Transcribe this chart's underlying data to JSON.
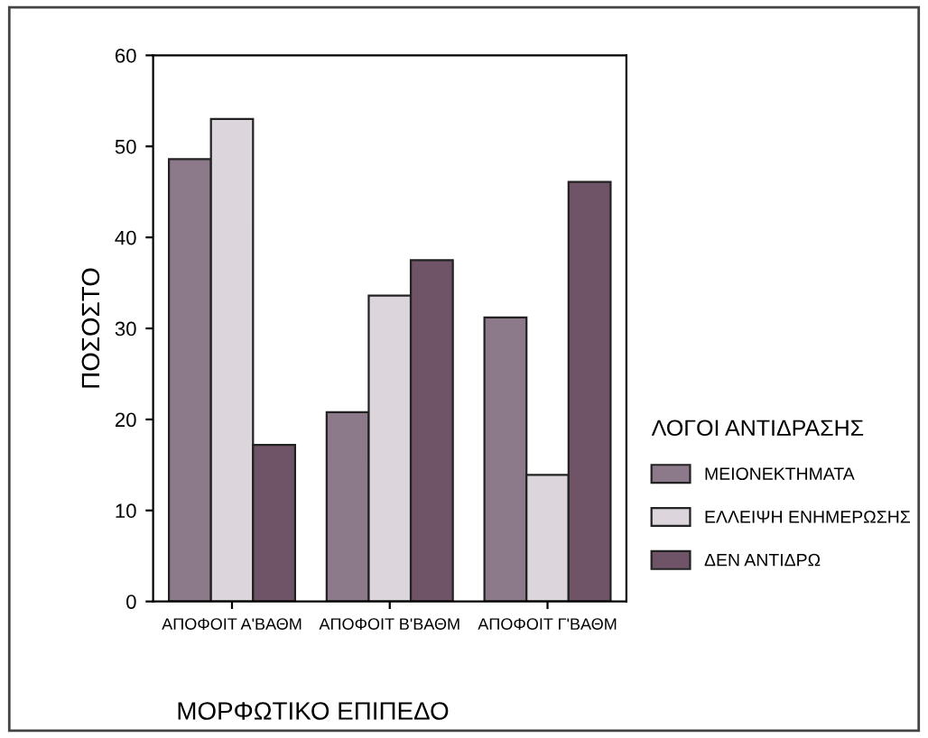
{
  "chart_data": {
    "type": "bar",
    "xlabel": "ΜΟΡΦΩΤΙΚΟ ΕΠΙΠΕΔΟ",
    "ylabel": "ΠΟΣΟΣΤΟ",
    "legend_title": "ΛΟΓΟΙ ΑΝΤΙΔΡΑΣΗΣ",
    "categories": [
      "ΑΠΟΦΟΙΤ Α'ΒΑΘΜ",
      "ΑΠΟΦΟΙΤ Β'ΒΑΘΜ",
      "ΑΠΟΦΟΙΤ Γ'ΒΑΘΜ"
    ],
    "series": [
      {
        "name": "ΜΕΙΟΝΕΚΤΗΜΑΤΑ",
        "color": "#8c7a8a",
        "values": [
          48.6,
          20.8,
          31.2
        ]
      },
      {
        "name": "ΕΛΛΕΙΨΗ ΕΝΗΜΕΡΩΣΗΣ",
        "color": "#dcd6dc",
        "values": [
          53,
          33.6,
          13.9
        ]
      },
      {
        "name": "ΔΕΝ ΑΝΤΙΔΡΩ",
        "color": "#6e5466",
        "values": [
          17.2,
          37.5,
          46.1
        ]
      }
    ],
    "ylim": [
      0,
      60
    ],
    "yticks": [
      0,
      10,
      20,
      30,
      40,
      50,
      60
    ],
    "grid": false,
    "legend": "right"
  }
}
